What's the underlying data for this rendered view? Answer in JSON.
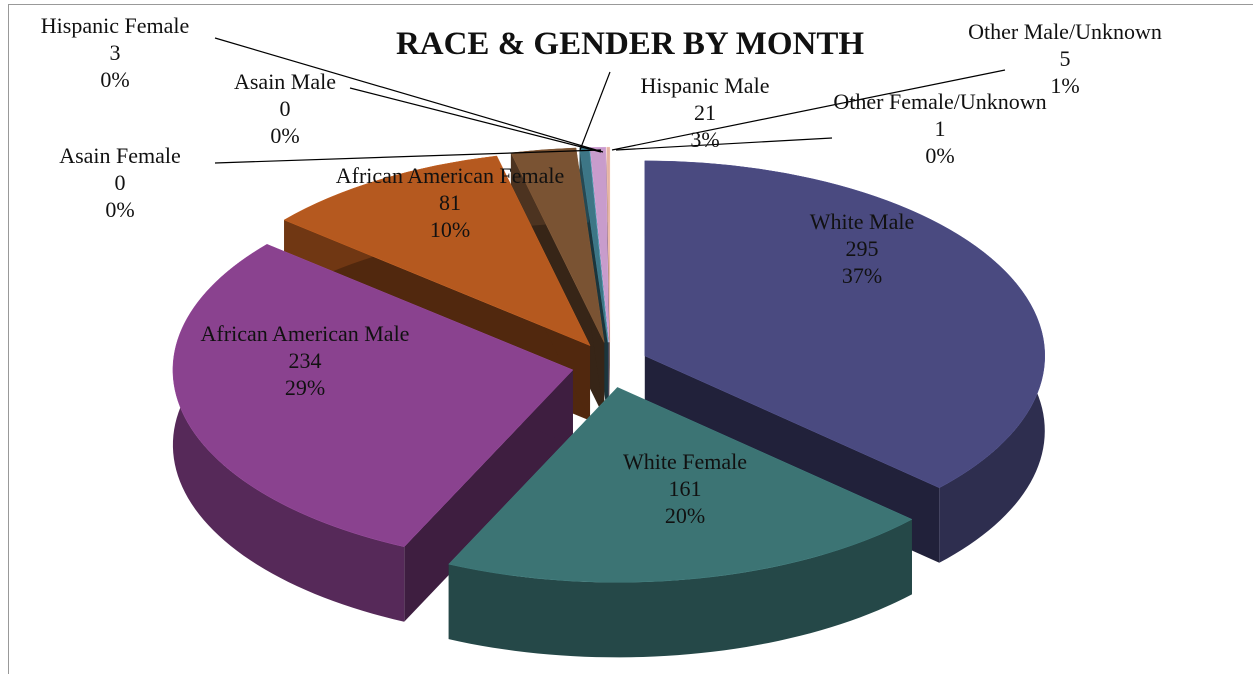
{
  "chart_data": {
    "type": "pie3d",
    "title": "RACE & GENDER BY MONTH",
    "categories": [
      "White Male",
      "White Female",
      "African American Male",
      "African American Female",
      "Hispanic Male",
      "Hispanic Female",
      "Asain Male",
      "Asain Female",
      "Other Male/Unknown",
      "Other Female/Unknown"
    ],
    "values": [
      295,
      161,
      234,
      81,
      21,
      3,
      0,
      0,
      5,
      1
    ],
    "percent_labels": [
      "37%",
      "20%",
      "29%",
      "10%",
      "3%",
      "0%",
      "0%",
      "0%",
      "1%",
      "0%"
    ],
    "colors": [
      "#4a4a80",
      "#3c7474",
      "#8a428f",
      "#b5591f",
      "#7a5333",
      "#3d7686",
      "#5a5aa6",
      "#66aabb",
      "#c89ccc",
      "#e3b4a4"
    ]
  }
}
